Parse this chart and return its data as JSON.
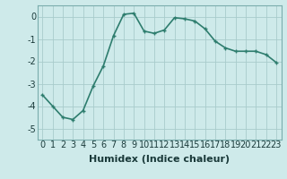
{
  "x": [
    0,
    1,
    2,
    3,
    4,
    5,
    6,
    7,
    8,
    9,
    10,
    11,
    12,
    13,
    14,
    15,
    16,
    17,
    18,
    19,
    20,
    21,
    22,
    23
  ],
  "y": [
    -3.5,
    -4.0,
    -4.5,
    -4.6,
    -4.2,
    -3.1,
    -2.2,
    -0.85,
    0.1,
    0.15,
    -0.65,
    -0.75,
    -0.6,
    -0.05,
    -0.1,
    -0.2,
    -0.55,
    -1.1,
    -1.4,
    -1.55,
    -1.55,
    -1.55,
    -1.7,
    -2.05
  ],
  "line_color": "#2e7d6e",
  "marker": "+",
  "marker_size": 3,
  "marker_linewidth": 1.0,
  "bg_color": "#ceeaea",
  "grid_color": "#a8cccc",
  "xlabel": "Humidex (Indice chaleur)",
  "xlim": [
    -0.5,
    23.5
  ],
  "ylim": [
    -5.5,
    0.5
  ],
  "yticks": [
    0,
    -1,
    -2,
    -3,
    -4,
    -5
  ],
  "xlabel_fontsize": 8,
  "tick_fontsize": 7,
  "linewidth": 1.2
}
